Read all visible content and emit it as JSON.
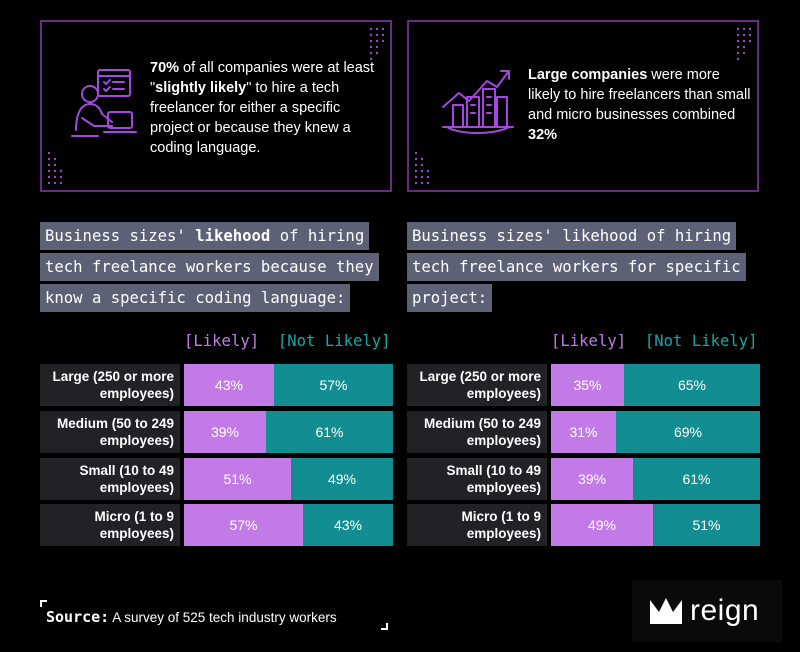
{
  "cards": {
    "left": {
      "parts": [
        {
          "t": "70%",
          "b": true
        },
        {
          "t": " of all companies were at least \"",
          "b": false
        },
        {
          "t": "slightly likely",
          "b": true
        },
        {
          "t": "\" to hire a tech freelancer for either a specific project or because they knew a coding language.",
          "b": false
        }
      ],
      "icon": "freelancer-at-laptop-icon"
    },
    "right": {
      "parts": [
        {
          "t": "Large companies",
          "b": true
        },
        {
          "t": " were more likely to hire freelancers than small and micro businesses combined ",
          "b": false
        },
        {
          "t": "32%",
          "b": true
        }
      ],
      "icon": "city-growth-chart-icon"
    }
  },
  "headings": {
    "left": [
      [
        {
          "t": "Business sizes' ",
          "b": false
        },
        {
          "t": "likehood",
          "b": true
        },
        {
          "t": " of hiring",
          "b": false
        }
      ],
      [
        {
          "t": "tech freelance workers because they",
          "b": false
        }
      ],
      [
        {
          "t": "know a specific coding language:",
          "b": false
        }
      ]
    ],
    "right": [
      [
        {
          "t": "Business sizes' likehood of hiring",
          "b": false
        }
      ],
      [
        {
          "t": "tech freelance workers for specific",
          "b": false
        }
      ],
      [
        {
          "t": "project:",
          "b": false
        }
      ]
    ]
  },
  "legend": {
    "likely": "[Likely]",
    "not_likely": "[Not Likely]"
  },
  "chart_data": [
    {
      "type": "bar",
      "orientation": "horizontal-stacked",
      "title": "Business sizes' likehood of hiring tech freelance workers because they know a specific coding language:",
      "categories": [
        [
          "Large (250 or more",
          "employees)"
        ],
        [
          "Medium (50 to 249",
          "employees)"
        ],
        [
          "Small (10 to 49",
          "employees)"
        ],
        [
          "Micro (1 to 9",
          "employees)"
        ]
      ],
      "series": [
        {
          "name": "Likely",
          "values": [
            43,
            39,
            51,
            57
          ],
          "color": "#c27ae6"
        },
        {
          "name": "Not Likely",
          "values": [
            57,
            61,
            49,
            43
          ],
          "color": "#128e93"
        }
      ],
      "unit": "%",
      "xlim": [
        0,
        100
      ]
    },
    {
      "type": "bar",
      "orientation": "horizontal-stacked",
      "title": "Business sizes' likehood of hiring tech freelance workers for specific project:",
      "categories": [
        [
          "Large (250 or more",
          "employees)"
        ],
        [
          "Medium (50 to 249",
          "employees)"
        ],
        [
          "Small (10 to 49",
          "employees)"
        ],
        [
          "Micro (1 to 9",
          "employees)"
        ]
      ],
      "series": [
        {
          "name": "Likely",
          "values": [
            35,
            31,
            39,
            49
          ],
          "color": "#c27ae6"
        },
        {
          "name": "Not Likely",
          "values": [
            65,
            69,
            61,
            51
          ],
          "color": "#128e93"
        }
      ],
      "unit": "%",
      "xlim": [
        0,
        100
      ]
    }
  ],
  "source": {
    "label": "Source:",
    "text": "A survey of 525 tech industry workers"
  },
  "brand": {
    "name": "reign",
    "accent": "#6a2a84"
  }
}
